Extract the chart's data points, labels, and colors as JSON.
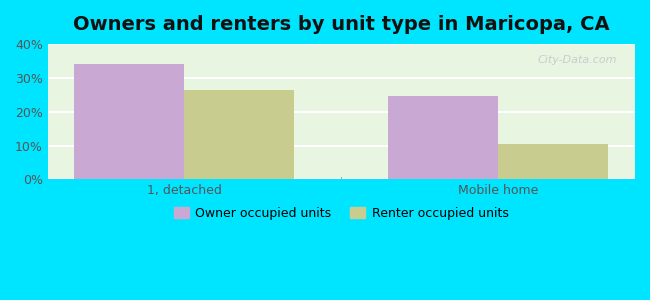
{
  "title": "Owners and renters by unit type in Maricopa, CA",
  "categories": [
    "1, detached",
    "Mobile home"
  ],
  "owner_values": [
    34,
    24.5
  ],
  "renter_values": [
    26.5,
    10.5
  ],
  "owner_color": "#c9a8d4",
  "renter_color": "#c8cc8e",
  "bar_width": 0.35,
  "ylim": [
    0,
    40
  ],
  "yticks": [
    0,
    10,
    20,
    30,
    40
  ],
  "ytick_labels": [
    "0%",
    "10%",
    "20%",
    "30%",
    "40%"
  ],
  "background_color": "#e8f5e0",
  "outer_background": "#00e5ff",
  "grid_color": "#ffffff",
  "title_fontsize": 14,
  "legend_labels": [
    "Owner occupied units",
    "Renter occupied units"
  ],
  "watermark": "City-Data.com"
}
